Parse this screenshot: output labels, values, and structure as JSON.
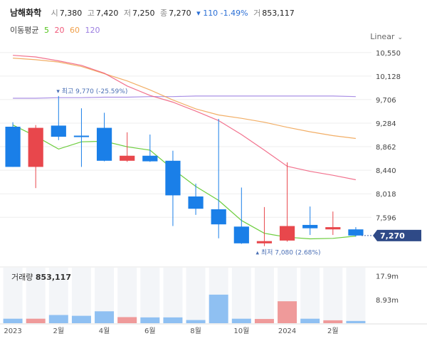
{
  "header": {
    "name": "남해화학",
    "open_label": "시",
    "open": "7,380",
    "high_label": "고",
    "high": "7,420",
    "low_label": "저",
    "low": "7,250",
    "close_label": "종",
    "close": "7,270",
    "change": "▾ 110 -1.49%",
    "volume_label": "거",
    "volume": "853,117"
  },
  "ma_legend": {
    "label": "이동평균",
    "periods": [
      {
        "text": "5",
        "color": "#52c41a"
      },
      {
        "text": "20",
        "color": "#f0597a"
      },
      {
        "text": "60",
        "color": "#f0a04b"
      },
      {
        "text": "120",
        "color": "#9b7de0"
      }
    ]
  },
  "scale_mode": "Linear",
  "volume_panel": {
    "label": "거래량",
    "value": "853,117"
  },
  "chart_data": {
    "type": "candlestick",
    "colors": {
      "up": "#e8474c",
      "down": "#1a7fe8",
      "up_vol": "#ef9a9a",
      "down_vol": "#8fc0f2",
      "grid": "#eeeeee"
    },
    "y_ticks": [
      7596,
      8018,
      8440,
      8862,
      9284,
      9706,
      10128,
      10550
    ],
    "y_tick_labels": [
      "7,596",
      "8,018",
      "8,440",
      "8,862",
      "9,284",
      "9,706",
      "10,128",
      "10,550"
    ],
    "ylim": [
      7000,
      10700
    ],
    "x_labels": [
      "2023",
      "2월",
      "4월",
      "6월",
      "8월",
      "10월",
      "2024",
      "2월"
    ],
    "x_label_candles": [
      0,
      2,
      4,
      6,
      8,
      10,
      12,
      14
    ],
    "candles": [
      {
        "o": 9220,
        "h": 9300,
        "l": 8500,
        "c": 8500
      },
      {
        "o": 8500,
        "h": 9250,
        "l": 8120,
        "c": 9200
      },
      {
        "o": 9240,
        "h": 9770,
        "l": 8980,
        "c": 9040
      },
      {
        "o": 9060,
        "h": 9550,
        "l": 8500,
        "c": 9040
      },
      {
        "o": 9200,
        "h": 9470,
        "l": 8600,
        "c": 8610
      },
      {
        "o": 8610,
        "h": 9120,
        "l": 8590,
        "c": 8700
      },
      {
        "o": 8700,
        "h": 9080,
        "l": 8590,
        "c": 8600
      },
      {
        "o": 8610,
        "h": 8790,
        "l": 7440,
        "c": 7990
      },
      {
        "o": 7970,
        "h": 8200,
        "l": 7640,
        "c": 7750
      },
      {
        "o": 7740,
        "h": 9360,
        "l": 7220,
        "c": 7470
      },
      {
        "o": 7430,
        "h": 8130,
        "l": 7120,
        "c": 7130
      },
      {
        "o": 7130,
        "h": 7780,
        "l": 7080,
        "c": 7170
      },
      {
        "o": 7180,
        "h": 8580,
        "l": 7160,
        "c": 7440
      },
      {
        "o": 7460,
        "h": 7790,
        "l": 7280,
        "c": 7400
      },
      {
        "o": 7380,
        "h": 7700,
        "l": 7280,
        "c": 7420
      },
      {
        "o": 7380,
        "h": 7420,
        "l": 7250,
        "c": 7270
      }
    ],
    "ma5": [
      9250,
      9050,
      8820,
      8950,
      8960,
      8860,
      8800,
      8460,
      8150,
      7900,
      7540,
      7310,
      7240,
      7210,
      7220,
      7260
    ],
    "ma20": [
      10500,
      10470,
      10400,
      10320,
      10180,
      9950,
      9780,
      9660,
      9500,
      9330,
      9080,
      8800,
      8510,
      8420,
      8350,
      8270
    ],
    "ma60": [
      10450,
      10420,
      10380,
      10300,
      10170,
      10040,
      9880,
      9700,
      9540,
      9430,
      9370,
      9300,
      9210,
      9130,
      9060,
      9010
    ],
    "ma120": [
      9730,
      9730,
      9740,
      9740,
      9750,
      9750,
      9760,
      9760,
      9770,
      9770,
      9770,
      9770,
      9770,
      9770,
      9770,
      9760
    ],
    "high_annotation": {
      "candle": 2,
      "text": "▾ 최고 9,770 (-25.59%)"
    },
    "low_annotation": {
      "candle": 11,
      "text": "▴ 최저 7,080 (2.68%)"
    },
    "last_price_label": "7,270",
    "volume": {
      "values": [
        1.7,
        1.7,
        3.1,
        2.8,
        4.5,
        2.3,
        2.2,
        2.2,
        1.2,
        10.8,
        1.7,
        1.6,
        8.3,
        1.7,
        1.1,
        0.85
      ],
      "ticks": [
        17.9,
        8.93
      ],
      "tick_labels": [
        "17.9m",
        "8.93m"
      ],
      "ymax": 21
    }
  }
}
